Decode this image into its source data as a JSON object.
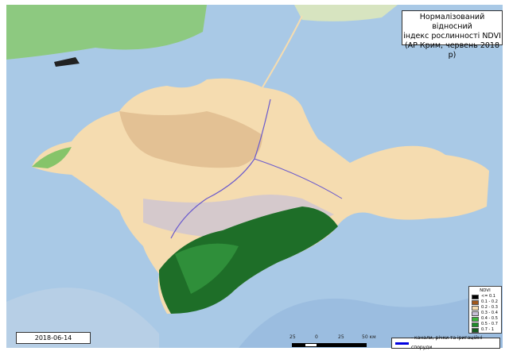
{
  "title": {
    "line1": "Нормалізований відносний",
    "line2": "індекс рослинності NDVI",
    "line3": "(АР Крим,  червень 2018 р)"
  },
  "legend": {
    "title": "NDVI",
    "items": [
      {
        "label": "<= 0.1",
        "color": "#000000"
      },
      {
        "label": "0.1 - 0.2",
        "color": "#a0581c"
      },
      {
        "label": "0.2 - 0.3",
        "color": "#f5dcb0"
      },
      {
        "label": "0.3 - 0.4",
        "color": "#c8c0d8"
      },
      {
        "label": "0.4 - 0.5",
        "color": "#3cb43c"
      },
      {
        "label": "0.5 - 0.7",
        "color": "#1e8c28"
      },
      {
        "label": "0.7 - 1",
        "color": "#145a1e"
      }
    ]
  },
  "date": "2018-06-14",
  "canal_legend": {
    "label": "- канали, річки та іригаційні споруди",
    "color": "#0000e0"
  },
  "scale": {
    "ticks": [
      "25",
      "0",
      "25",
      "50 км"
    ]
  },
  "colors": {
    "sea": "#a8c8e4",
    "land": "#f5dcb0"
  }
}
